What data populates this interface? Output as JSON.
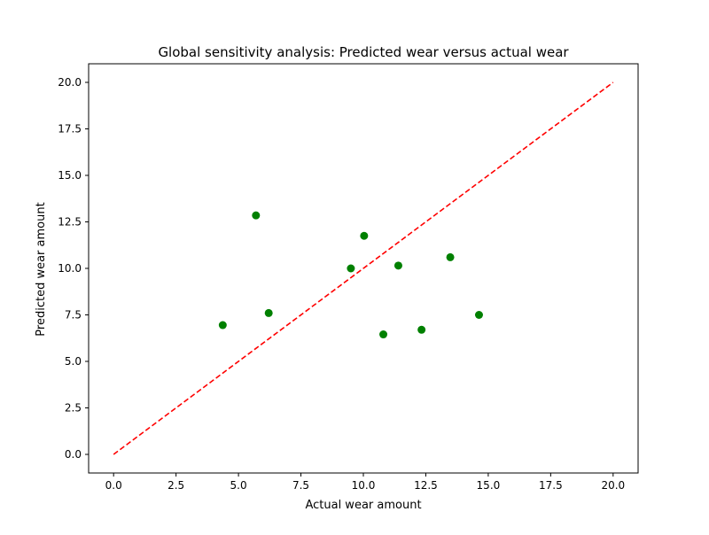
{
  "chart_data": {
    "type": "scatter",
    "title": "Global sensitivity analysis: Predicted wear versus actual wear",
    "xlabel": "Actual wear amount",
    "ylabel": "Predicted wear amount",
    "xlim": [
      -1.0,
      21.0
    ],
    "ylim": [
      -1.0,
      21.0
    ],
    "xticks": [
      0.0,
      2.5,
      5.0,
      7.5,
      10.0,
      12.5,
      15.0,
      17.5,
      20.0
    ],
    "yticks": [
      0.0,
      2.5,
      5.0,
      7.5,
      10.0,
      12.5,
      15.0,
      17.5,
      20.0
    ],
    "xtick_labels": [
      "0.0",
      "2.5",
      "5.0",
      "7.5",
      "10.0",
      "12.5",
      "15.0",
      "17.5",
      "20.0"
    ],
    "ytick_labels": [
      "0.0",
      "2.5",
      "5.0",
      "7.5",
      "10.0",
      "12.5",
      "15.0",
      "17.5",
      "20.0"
    ],
    "grid": false,
    "series": [
      {
        "kind": "scatter",
        "color": "#008000",
        "x": [
          4.37,
          5.7,
          6.21,
          9.5,
          10.03,
          10.8,
          11.4,
          12.33,
          13.48,
          14.63
        ],
        "y": [
          6.95,
          12.85,
          7.6,
          10.0,
          11.75,
          6.45,
          10.15,
          6.7,
          10.6,
          7.5
        ]
      },
      {
        "kind": "reference-line",
        "style": "dashed",
        "color": "#ff0000",
        "x": [
          0.0,
          20.0
        ],
        "y": [
          0.0,
          20.0
        ]
      }
    ]
  }
}
